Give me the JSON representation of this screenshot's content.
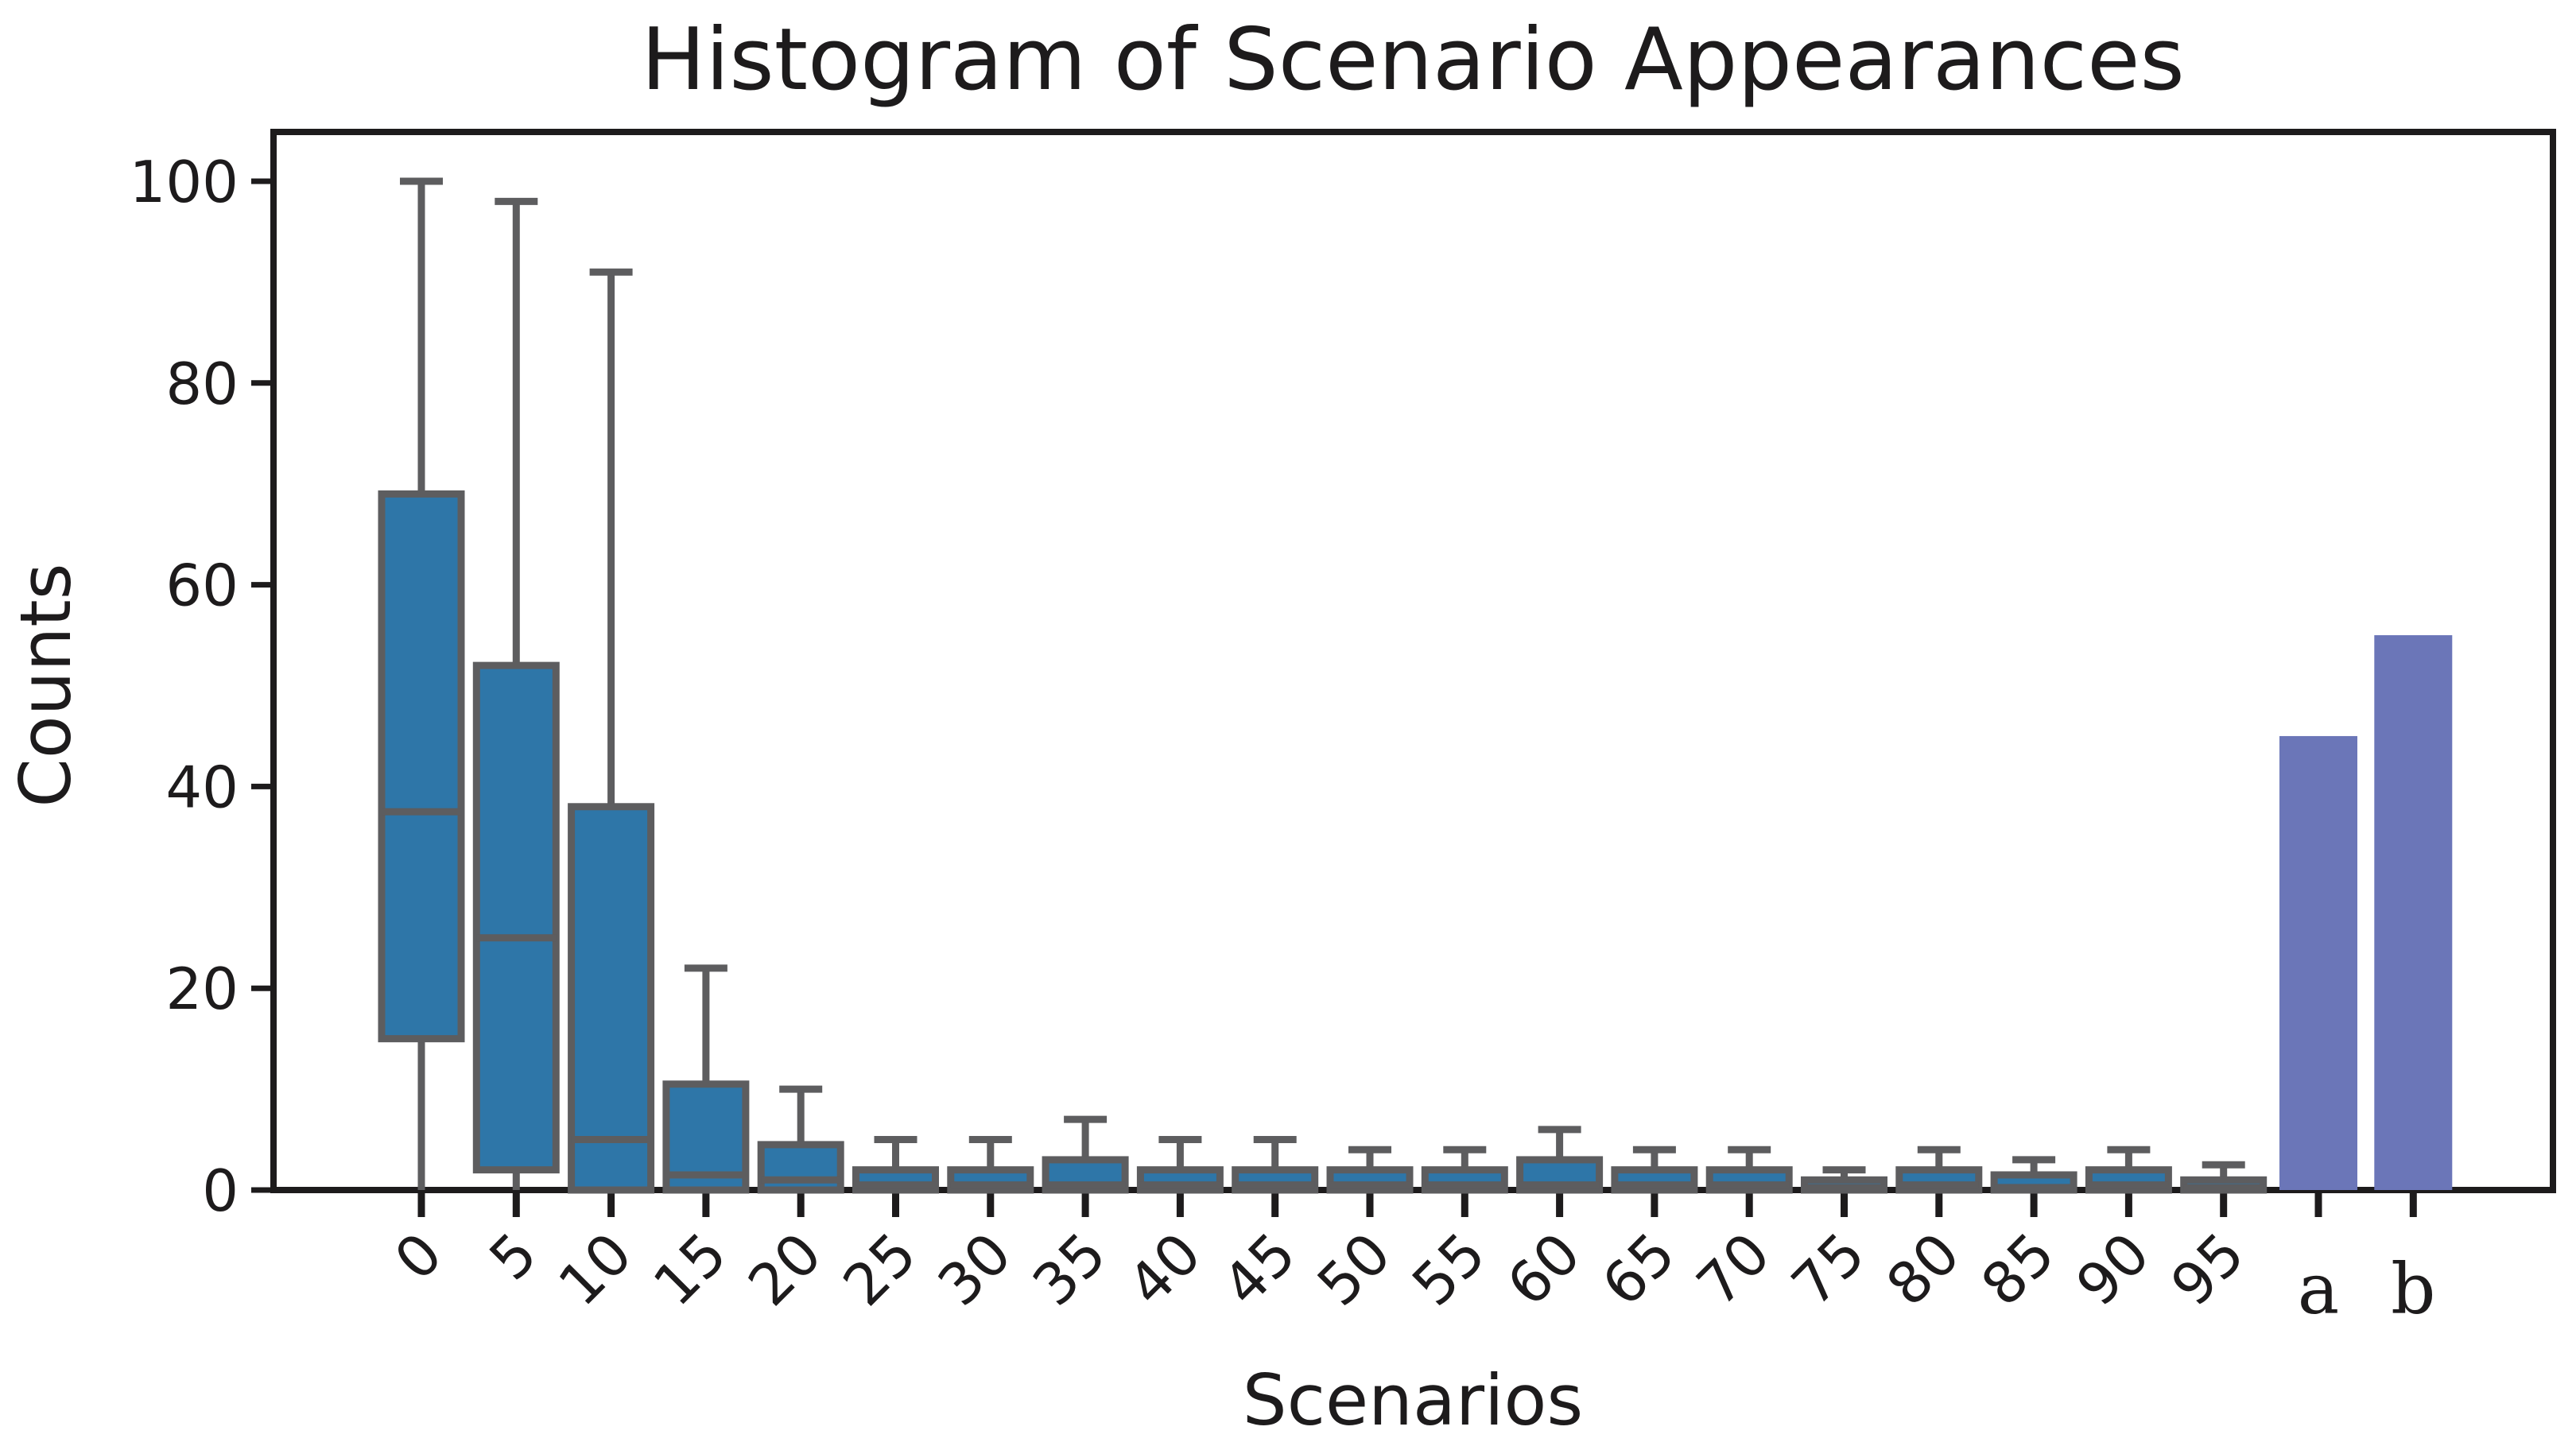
{
  "title": "Histogram of Scenario Appearances",
  "chart_data": {
    "type": "boxplot+bar",
    "title": "Histogram of Scenario Appearances",
    "xlabel": "Scenarios",
    "ylabel": "Counts",
    "ylim": [
      0,
      100
    ],
    "yticks": [
      0,
      20,
      40,
      60,
      80,
      100
    ],
    "grid": false,
    "legend": null,
    "categories": [
      "0",
      "5",
      "10",
      "15",
      "20",
      "25",
      "30",
      "35",
      "40",
      "45",
      "50",
      "55",
      "60",
      "65",
      "70",
      "75",
      "80",
      "85",
      "90",
      "95",
      "a",
      "b"
    ],
    "boxplots": [
      {
        "category": "0",
        "whisker_low": 0,
        "q1": 15,
        "median": 37.5,
        "q3": 69,
        "whisker_high": 100
      },
      {
        "category": "5",
        "whisker_low": 0,
        "q1": 2,
        "median": 25,
        "q3": 52,
        "whisker_high": 98
      },
      {
        "category": "10",
        "whisker_low": 0,
        "q1": 0,
        "median": 5,
        "q3": 38,
        "whisker_high": 91
      },
      {
        "category": "15",
        "whisker_low": 0,
        "q1": 0,
        "median": 1.5,
        "q3": 10.5,
        "whisker_high": 22
      },
      {
        "category": "20",
        "whisker_low": 0,
        "q1": 0,
        "median": 1,
        "q3": 4.5,
        "whisker_high": 10
      },
      {
        "category": "25",
        "whisker_low": 0,
        "q1": 0,
        "median": 0.5,
        "q3": 2,
        "whisker_high": 5
      },
      {
        "category": "30",
        "whisker_low": 0,
        "q1": 0,
        "median": 0.5,
        "q3": 2,
        "whisker_high": 5
      },
      {
        "category": "35",
        "whisker_low": 0,
        "q1": 0,
        "median": 0.5,
        "q3": 3,
        "whisker_high": 7
      },
      {
        "category": "40",
        "whisker_low": 0,
        "q1": 0,
        "median": 0.5,
        "q3": 2,
        "whisker_high": 5
      },
      {
        "category": "45",
        "whisker_low": 0,
        "q1": 0,
        "median": 0.5,
        "q3": 2,
        "whisker_high": 5
      },
      {
        "category": "50",
        "whisker_low": 0,
        "q1": 0,
        "median": 0.5,
        "q3": 2,
        "whisker_high": 4
      },
      {
        "category": "55",
        "whisker_low": 0,
        "q1": 0,
        "median": 0.5,
        "q3": 2,
        "whisker_high": 4
      },
      {
        "category": "60",
        "whisker_low": 0,
        "q1": 0,
        "median": 0.5,
        "q3": 3,
        "whisker_high": 6
      },
      {
        "category": "65",
        "whisker_low": 0,
        "q1": 0,
        "median": 0.5,
        "q3": 2,
        "whisker_high": 4
      },
      {
        "category": "70",
        "whisker_low": 0,
        "q1": 0,
        "median": 0.5,
        "q3": 2,
        "whisker_high": 4
      },
      {
        "category": "75",
        "whisker_low": 0,
        "q1": 0,
        "median": 0.25,
        "q3": 1,
        "whisker_high": 2
      },
      {
        "category": "80",
        "whisker_low": 0,
        "q1": 0,
        "median": 0.5,
        "q3": 2,
        "whisker_high": 4
      },
      {
        "category": "85",
        "whisker_low": 0,
        "q1": 0,
        "median": 0.25,
        "q3": 1.5,
        "whisker_high": 3
      },
      {
        "category": "90",
        "whisker_low": 0,
        "q1": 0,
        "median": 0.5,
        "q3": 2,
        "whisker_high": 4
      },
      {
        "category": "95",
        "whisker_low": 0,
        "q1": 0,
        "median": 0.25,
        "q3": 1,
        "whisker_high": 2.5
      }
    ],
    "bars": [
      {
        "category": "a",
        "value": 45
      },
      {
        "category": "b",
        "value": 55
      }
    ],
    "colors": {
      "box_fill": "#2e76a8",
      "box_edge": "#5d5d5f",
      "bar_fill": "#6b76b8",
      "axis": "#1d1b1c",
      "text": "#1d1b1c"
    }
  }
}
